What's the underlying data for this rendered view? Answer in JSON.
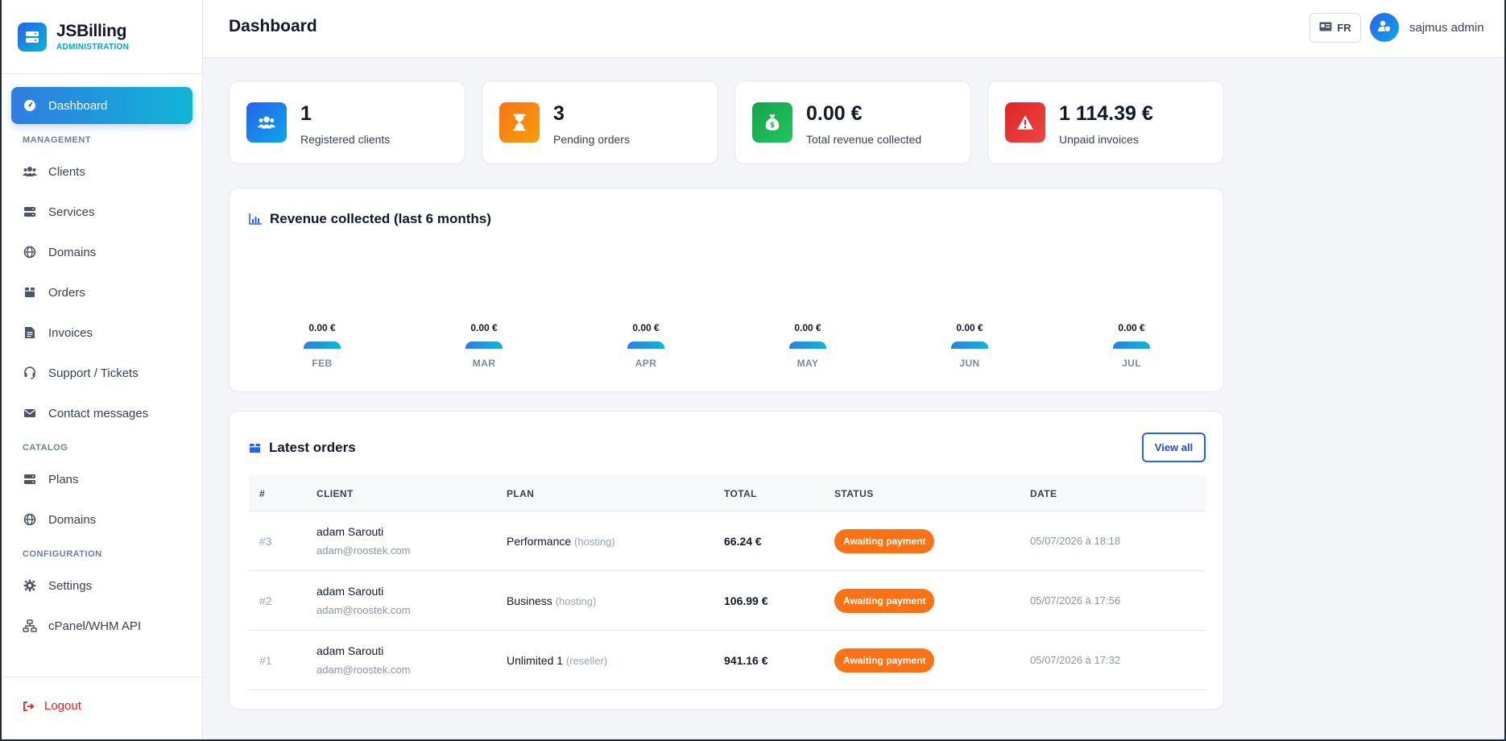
{
  "brand": {
    "name": "JSBilling",
    "subtitle": "ADMINISTRATION"
  },
  "sidebar": {
    "dashboard": "Dashboard",
    "management_heading": "MANAGEMENT",
    "management": [
      "Clients",
      "Services",
      "Domains",
      "Orders",
      "Invoices",
      "Support / Tickets",
      "Contact messages"
    ],
    "catalog_heading": "CATALOG",
    "catalog": [
      "Plans",
      "Domains"
    ],
    "configuration_heading": "CONFIGURATION",
    "configuration": [
      "Settings",
      "cPanel/WHM API"
    ],
    "logout": "Logout"
  },
  "header": {
    "title": "Dashboard",
    "language": "FR",
    "user_name": "sajmus admin"
  },
  "stats": [
    {
      "value": "1",
      "label": "Registered clients",
      "color": "#2563eb"
    },
    {
      "value": "3",
      "label": "Pending orders",
      "color": "#f97316"
    },
    {
      "value": "0.00 €",
      "label": "Total revenue collected",
      "color": "#16a34a"
    },
    {
      "value": "1 114.39 €",
      "label": "Unpaid invoices",
      "color": "#dc2626"
    }
  ],
  "revenue": {
    "title": "Revenue collected (last 6 months)",
    "bars": [
      {
        "month": "FEB",
        "value_label": "0.00 €"
      },
      {
        "month": "MAR",
        "value_label": "0.00 €"
      },
      {
        "month": "APR",
        "value_label": "0.00 €"
      },
      {
        "month": "MAY",
        "value_label": "0.00 €"
      },
      {
        "month": "JUN",
        "value_label": "0.00 €"
      },
      {
        "month": "JUL",
        "value_label": "0.00 €"
      }
    ]
  },
  "orders": {
    "title": "Latest orders",
    "view_all": "View all",
    "columns": [
      "#",
      "CLIENT",
      "PLAN",
      "TOTAL",
      "STATUS",
      "DATE"
    ],
    "rows": [
      {
        "id": "#3",
        "client": "adam Sarouti",
        "email": "adam@roostek.com",
        "plan": "Performance",
        "plan_type": "(hosting)",
        "total": "66.24 €",
        "status": "Awaiting payment",
        "date": "05/07/2026 à 18:18"
      },
      {
        "id": "#2",
        "client": "adam Sarouti",
        "email": "adam@roostek.com",
        "plan": "Business",
        "plan_type": "(hosting)",
        "total": "106.99 €",
        "status": "Awaiting payment",
        "date": "05/07/2026 à 17:56"
      },
      {
        "id": "#1",
        "client": "adam Sarouti",
        "email": "adam@roostek.com",
        "plan": "Unlimited 1",
        "plan_type": "(reseller)",
        "total": "941.16 €",
        "status": "Awaiting payment",
        "date": "05/07/2026 à 17:32"
      }
    ]
  }
}
